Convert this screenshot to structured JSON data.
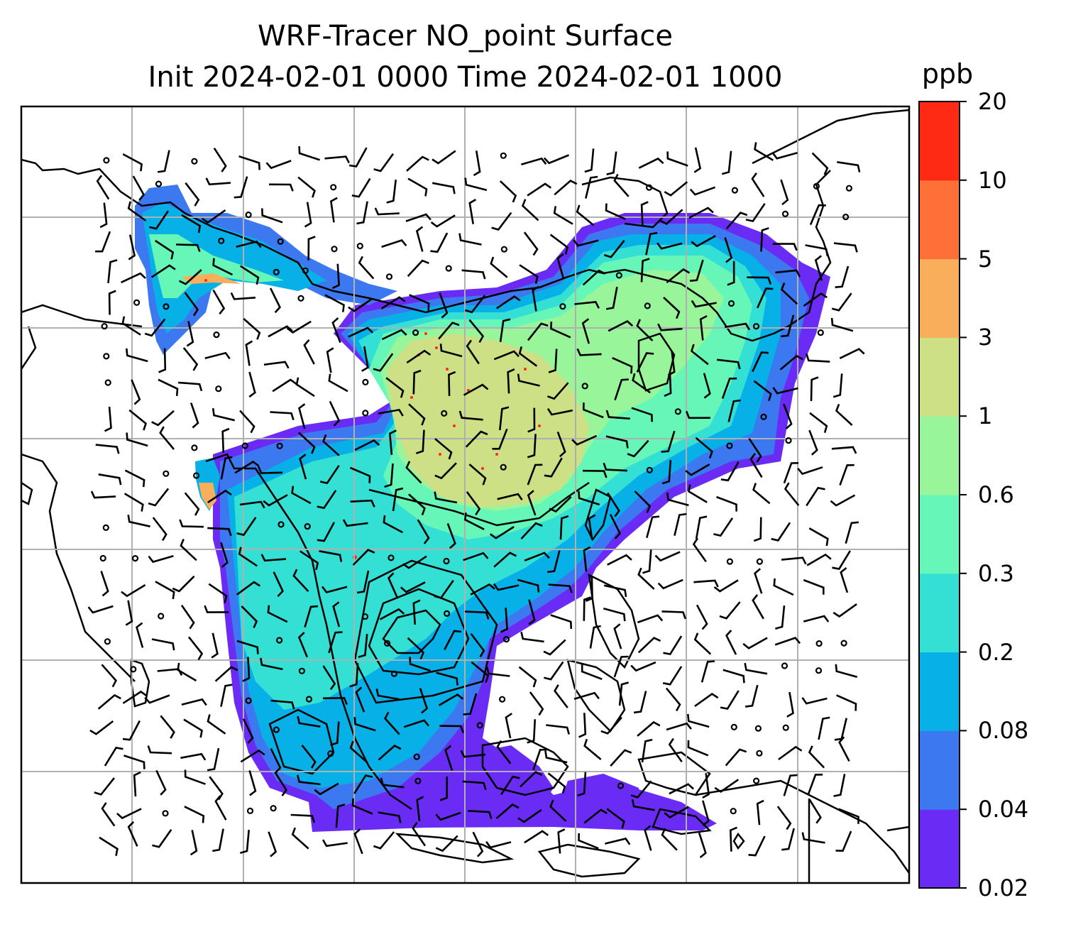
{
  "title": {
    "line1": "WRF-Tracer NO_point Surface",
    "line2": "Init 2024-02-01 0000 Time 2024-02-01 1000"
  },
  "colorbar": {
    "unit": "ppb",
    "ticks": [
      "0.02",
      "0.04",
      "0.08",
      "0.2",
      "0.3",
      "0.6",
      "1",
      "3",
      "5",
      "10",
      "20"
    ],
    "colors": [
      "#6a2cf5",
      "#3c78f0",
      "#08b0e8",
      "#34e0d4",
      "#66f7b8",
      "#98f59a",
      "#cde085",
      "#f9ae5c",
      "#ff7038",
      "#ff2a14"
    ]
  },
  "map": {
    "grid": "on",
    "wind_barbs": "on",
    "coastlines": "on"
  }
}
